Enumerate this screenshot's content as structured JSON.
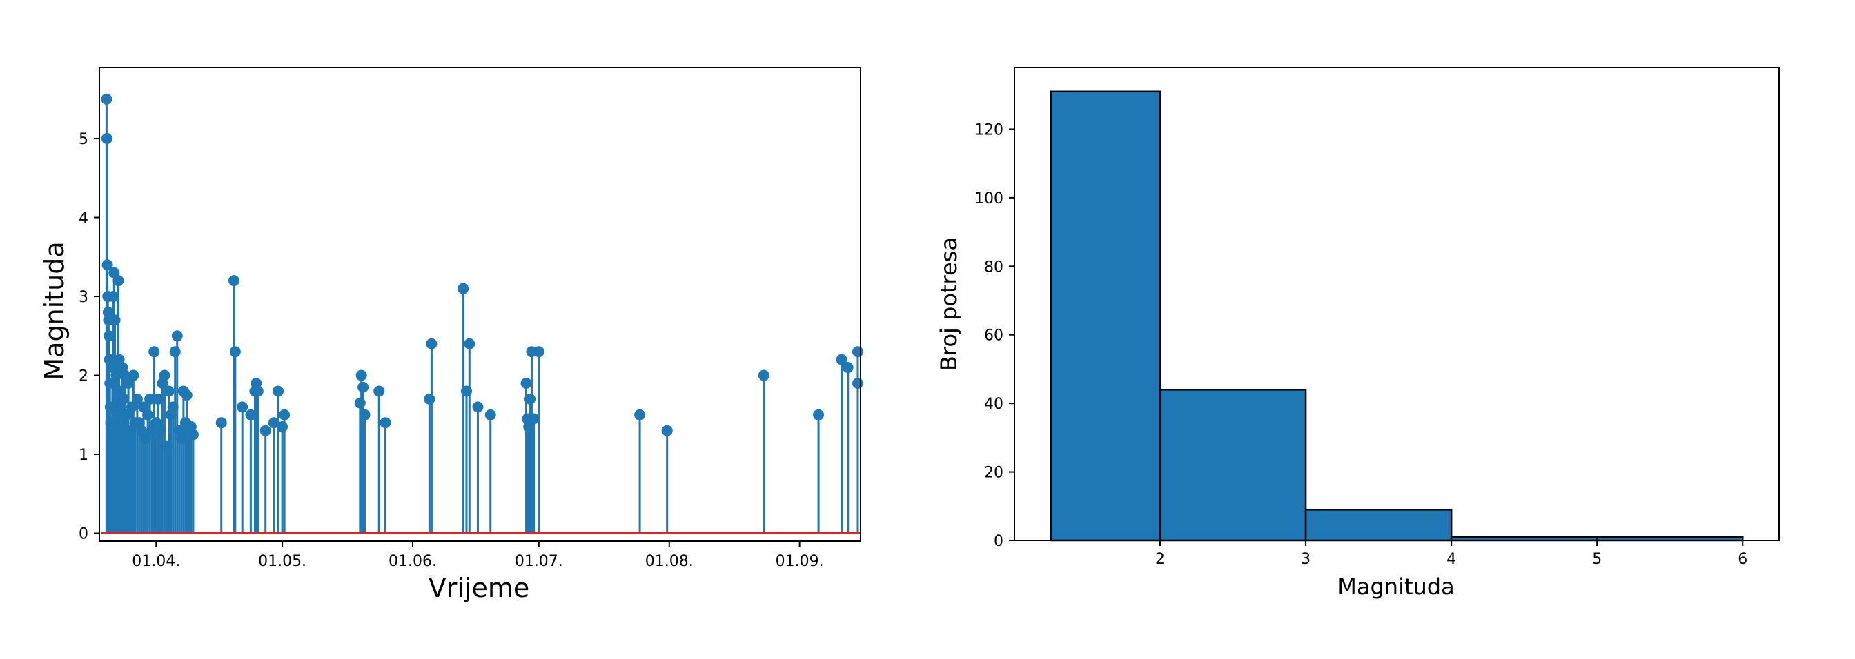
{
  "chart_data": [
    {
      "type": "stem",
      "xlabel": "Vrijeme",
      "ylabel": "Magnituda",
      "xlim_day": [
        -2.5,
        178.5
      ],
      "ylim": [
        -0.1,
        5.9
      ],
      "x_ticks": [
        {
          "day": 11,
          "label": "01.04."
        },
        {
          "day": 41,
          "label": "01.05."
        },
        {
          "day": 72,
          "label": "01.06."
        },
        {
          "day": 102,
          "label": "01.07."
        },
        {
          "day": 133,
          "label": "01.08."
        },
        {
          "day": 164,
          "label": "01.09."
        }
      ],
      "y_ticks": [
        0,
        1,
        2,
        3,
        4,
        5
      ],
      "stem_color": "#1f77b4",
      "baseline_color": "#d62728",
      "points": [
        {
          "day": -0.8,
          "mag": 5.5
        },
        {
          "day": -0.7,
          "mag": 5.0
        },
        {
          "day": -0.6,
          "mag": 3.4
        },
        {
          "day": -0.5,
          "mag": 3.0
        },
        {
          "day": -0.4,
          "mag": 2.8
        },
        {
          "day": -0.3,
          "mag": 2.7
        },
        {
          "day": -0.2,
          "mag": 2.5
        },
        {
          "day": -0.1,
          "mag": 2.2
        },
        {
          "day": 0.0,
          "mag": 1.9
        },
        {
          "day": 0.1,
          "mag": 1.6
        },
        {
          "day": 0.2,
          "mag": 1.4
        },
        {
          "day": 0.3,
          "mag": 1.3
        },
        {
          "day": 0.6,
          "mag": 2.1
        },
        {
          "day": 0.8,
          "mag": 3.0
        },
        {
          "day": 1.0,
          "mag": 3.3
        },
        {
          "day": 1.2,
          "mag": 2.7
        },
        {
          "day": 1.5,
          "mag": 2.0
        },
        {
          "day": 1.7,
          "mag": 1.5
        },
        {
          "day": 2.0,
          "mag": 3.2
        },
        {
          "day": 2.2,
          "mag": 2.2
        },
        {
          "day": 2.5,
          "mag": 1.8
        },
        {
          "day": 2.8,
          "mag": 1.3
        },
        {
          "day": 3.0,
          "mag": 2.1
        },
        {
          "day": 3.3,
          "mag": 1.7
        },
        {
          "day": 3.6,
          "mag": 2.0
        },
        {
          "day": 4.0,
          "mag": 1.5
        },
        {
          "day": 4.4,
          "mag": 1.9
        },
        {
          "day": 4.8,
          "mag": 1.3
        },
        {
          "day": 5.2,
          "mag": 1.6
        },
        {
          "day": 5.6,
          "mag": 2.0
        },
        {
          "day": 6.0,
          "mag": 1.4
        },
        {
          "day": 6.5,
          "mag": 1.7
        },
        {
          "day": 7.0,
          "mag": 1.4
        },
        {
          "day": 7.5,
          "mag": 1.3
        },
        {
          "day": 8.0,
          "mag": 1.6
        },
        {
          "day": 8.5,
          "mag": 1.2
        },
        {
          "day": 9.0,
          "mag": 1.5
        },
        {
          "day": 9.5,
          "mag": 1.7
        },
        {
          "day": 10.0,
          "mag": 1.3
        },
        {
          "day": 10.5,
          "mag": 2.3
        },
        {
          "day": 11.0,
          "mag": 1.4
        },
        {
          "day": 11.5,
          "mag": 1.7
        },
        {
          "day": 12.0,
          "mag": 1.3
        },
        {
          "day": 12.5,
          "mag": 1.9
        },
        {
          "day": 13.0,
          "mag": 2.0
        },
        {
          "day": 13.5,
          "mag": 1.1
        },
        {
          "day": 14.0,
          "mag": 1.8
        },
        {
          "day": 14.5,
          "mag": 1.5
        },
        {
          "day": 15.0,
          "mag": 1.6
        },
        {
          "day": 15.5,
          "mag": 2.3
        },
        {
          "day": 16.0,
          "mag": 2.5
        },
        {
          "day": 16.5,
          "mag": 1.3
        },
        {
          "day": 17.0,
          "mag": 1.2
        },
        {
          "day": 17.5,
          "mag": 1.8
        },
        {
          "day": 18.0,
          "mag": 1.4
        },
        {
          "day": 18.3,
          "mag": 1.75
        },
        {
          "day": 18.8,
          "mag": 1.3
        },
        {
          "day": 19.3,
          "mag": 1.35
        },
        {
          "day": 19.8,
          "mag": 1.25
        },
        {
          "day": 26.5,
          "mag": 1.4
        },
        {
          "day": 29.5,
          "mag": 3.2
        },
        {
          "day": 29.8,
          "mag": 2.3
        },
        {
          "day": 31.5,
          "mag": 1.6
        },
        {
          "day": 33.5,
          "mag": 1.5
        },
        {
          "day": 34.5,
          "mag": 1.8
        },
        {
          "day": 34.8,
          "mag": 1.9
        },
        {
          "day": 35.2,
          "mag": 1.8
        },
        {
          "day": 37.0,
          "mag": 1.3
        },
        {
          "day": 39.0,
          "mag": 1.4
        },
        {
          "day": 40.0,
          "mag": 1.8
        },
        {
          "day": 41.0,
          "mag": 1.35
        },
        {
          "day": 41.5,
          "mag": 1.5
        },
        {
          "day": 59.5,
          "mag": 1.65
        },
        {
          "day": 59.8,
          "mag": 2.0
        },
        {
          "day": 60.2,
          "mag": 1.85
        },
        {
          "day": 60.6,
          "mag": 1.5
        },
        {
          "day": 64.0,
          "mag": 1.8
        },
        {
          "day": 65.5,
          "mag": 1.4
        },
        {
          "day": 76.0,
          "mag": 1.7
        },
        {
          "day": 76.5,
          "mag": 2.4
        },
        {
          "day": 84.0,
          "mag": 3.1
        },
        {
          "day": 84.8,
          "mag": 1.8
        },
        {
          "day": 85.5,
          "mag": 2.4
        },
        {
          "day": 87.5,
          "mag": 1.6
        },
        {
          "day": 90.5,
          "mag": 1.5
        },
        {
          "day": 99.0,
          "mag": 1.9
        },
        {
          "day": 99.3,
          "mag": 1.45
        },
        {
          "day": 99.6,
          "mag": 1.35
        },
        {
          "day": 99.9,
          "mag": 1.7
        },
        {
          "day": 100.3,
          "mag": 2.3
        },
        {
          "day": 100.8,
          "mag": 1.45
        },
        {
          "day": 102.0,
          "mag": 2.3
        },
        {
          "day": 126.0,
          "mag": 1.5
        },
        {
          "day": 132.5,
          "mag": 1.3
        },
        {
          "day": 155.5,
          "mag": 2.0
        },
        {
          "day": 168.5,
          "mag": 1.5
        },
        {
          "day": 174.0,
          "mag": 2.2
        },
        {
          "day": 175.5,
          "mag": 2.1
        },
        {
          "day": 178.5,
          "mag": 1.9
        },
        {
          "day": 180.0,
          "mag": 2.3
        }
      ]
    },
    {
      "type": "bar",
      "xlabel": "Magnituda",
      "ylabel": "Broj potresa",
      "xlim": [
        1.0,
        6.25
      ],
      "ylim": [
        0,
        138
      ],
      "x_ticks": [
        2,
        3,
        4,
        5,
        6
      ],
      "y_ticks": [
        0,
        20,
        40,
        60,
        80,
        100,
        120
      ],
      "bar_color": "#1f77b4",
      "bins": [
        {
          "x0": 1.25,
          "x1": 2.0,
          "count": 131
        },
        {
          "x0": 2.0,
          "x1": 3.0,
          "count": 44
        },
        {
          "x0": 3.0,
          "x1": 4.0,
          "count": 9
        },
        {
          "x0": 4.0,
          "x1": 5.0,
          "count": 1
        },
        {
          "x0": 5.0,
          "x1": 6.0,
          "count": 1
        }
      ]
    }
  ]
}
